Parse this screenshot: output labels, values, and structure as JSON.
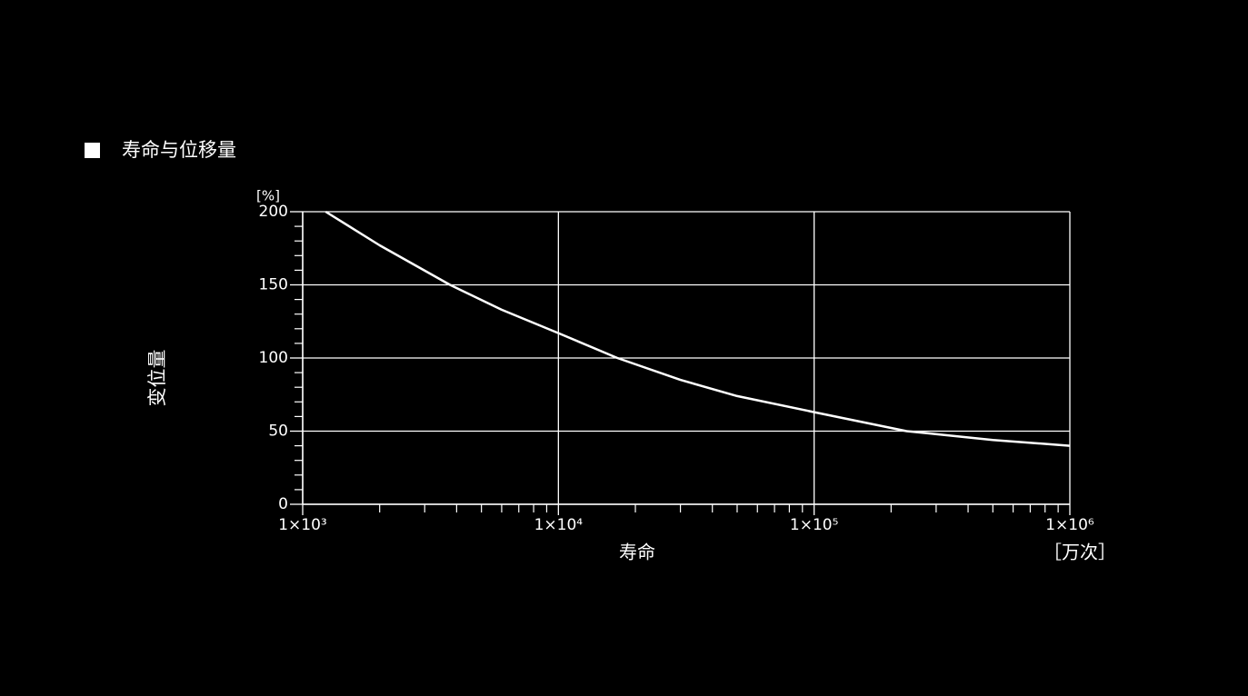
{
  "chart_data": {
    "type": "line",
    "title": "寿命与位移量",
    "ylabel": "变位量",
    "yunit": "[%]",
    "xlabel": "寿命",
    "xunit": "［万次］",
    "xscale": "log",
    "xlim": [
      1000,
      1000000
    ],
    "ylim": [
      0,
      200
    ],
    "xticks": [
      {
        "value": 1000,
        "label": "1×10³"
      },
      {
        "value": 10000,
        "label": "1×10⁴"
      },
      {
        "value": 100000,
        "label": "1×10⁵"
      },
      {
        "value": 1000000,
        "label": "1×10⁶"
      }
    ],
    "yticks": [
      0,
      50,
      100,
      150,
      200
    ],
    "minor_xticks": [
      2000,
      3000,
      4000,
      5000,
      6000,
      7000,
      8000,
      9000,
      20000,
      30000,
      40000,
      50000,
      60000,
      70000,
      80000,
      90000,
      200000,
      300000,
      400000,
      500000,
      600000,
      700000,
      800000,
      900000
    ],
    "minor_yticks": [
      10,
      20,
      30,
      40,
      60,
      70,
      80,
      90,
      110,
      120,
      130,
      140,
      160,
      170,
      180,
      190
    ],
    "grid": true,
    "x": [
      1230,
      2000,
      3770,
      6000,
      10000,
      17000,
      30000,
      50000,
      100000,
      230000,
      500000,
      1000000
    ],
    "series": [
      {
        "color": "#ffffff",
        "values": [
          200,
          177,
          150,
          133,
          117,
          100,
          85,
          74,
          63,
          50,
          44,
          40
        ]
      }
    ]
  }
}
